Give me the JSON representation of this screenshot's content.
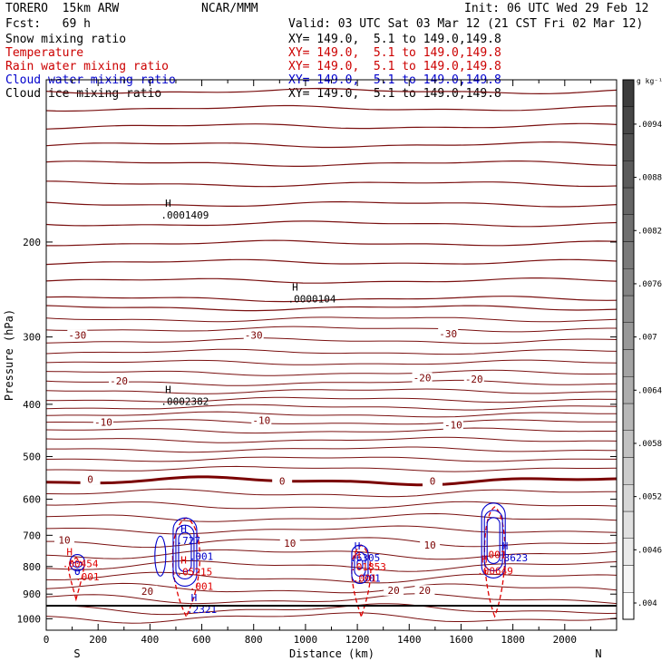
{
  "header": {
    "model": "TORERO  15km ARW",
    "org": "NCAR/MMM",
    "init": "Init: 06 UTC Wed 29 Feb 12",
    "fcst": "Fcst:   69 h",
    "valid": "Valid: 03 UTC Sat 03 Mar 12 (21 CST Fri 02 Mar 12)"
  },
  "fields": [
    {
      "name": "Snow mixing ratio",
      "xy": "XY= 149.0,  5.1 to 149.0,149.8",
      "color": "#000000"
    },
    {
      "name": "Temperature",
      "xy": "XY= 149.0,  5.1 to 149.0,149.8",
      "color": "#cc0000"
    },
    {
      "name": "Rain water mixing ratio",
      "xy": "XY= 149.0,  5.1 to 149.0,149.8",
      "color": "#cc0000"
    },
    {
      "name": "Cloud water mixing ratio",
      "xy": "XY= 149.0,  5.1 to 149.0,149.8",
      "color": "#0000cc"
    },
    {
      "name": "Cloud ice mixing ratio",
      "xy": "XY= 149.0,  5.1 to 149.0,149.8",
      "color": "#000000"
    }
  ],
  "colors": {
    "temperature": "#7a1010",
    "zero_isotherm": "#7a0000",
    "rain": "#e00000",
    "cloud_water": "#0000cc",
    "snow": "#000000"
  },
  "chart_data": {
    "type": "line",
    "title": "",
    "xlabel": "Distance (km)",
    "ylabel": "Pressure (hPa)",
    "xlim": [
      0,
      2200
    ],
    "ylim": [
      1050,
      100
    ],
    "xticks": [
      0,
      200,
      400,
      600,
      800,
      1000,
      1200,
      1400,
      1600,
      1800,
      2000
    ],
    "yticks": [
      200,
      300,
      400,
      500,
      600,
      700,
      800,
      900,
      1000
    ],
    "y_scale": "log",
    "x_end_labels": {
      "left": "S",
      "right": "N"
    },
    "colorbar": {
      "unit": "g kg⁻¹",
      "tick_labels": [
        ".004",
        ".0046",
        ".0052",
        ".0058",
        ".0064",
        ".007",
        ".0076",
        ".0082",
        ".0088",
        ".0094"
      ],
      "levels": [
        0.004,
        0.0046,
        0.0052,
        0.0058,
        0.0064,
        0.007,
        0.0076,
        0.0082,
        0.0088,
        0.0094
      ]
    },
    "isotherms": [
      {
        "t": -60,
        "p": 105
      },
      {
        "t": -58,
        "p": 113
      },
      {
        "t": -56,
        "p": 122
      },
      {
        "t": -54,
        "p": 132
      },
      {
        "t": -52,
        "p": 143
      },
      {
        "t": -50,
        "p": 156
      },
      {
        "t": -48,
        "p": 170
      },
      {
        "t": -46,
        "p": 185
      },
      {
        "t": -44,
        "p": 201
      },
      {
        "t": -42,
        "p": 218
      },
      {
        "t": -40,
        "p": 236
      },
      {
        "t": -38,
        "p": 255
      },
      {
        "t": -36,
        "p": 265
      },
      {
        "t": -34,
        "p": 278
      },
      {
        "t": -32,
        "p": 290
      },
      {
        "t": -30,
        "p": 305
      },
      {
        "t": -28,
        "p": 320
      },
      {
        "t": -26,
        "p": 335
      },
      {
        "t": -24,
        "p": 350
      },
      {
        "t": -22,
        "p": 365
      },
      {
        "t": -20,
        "p": 378
      },
      {
        "t": -18,
        "p": 392
      },
      {
        "t": -16,
        "p": 405
      },
      {
        "t": -14,
        "p": 418
      },
      {
        "t": -12,
        "p": 432
      },
      {
        "t": -10,
        "p": 448
      },
      {
        "t": -8,
        "p": 466
      },
      {
        "t": -6,
        "p": 485
      },
      {
        "t": -4,
        "p": 505
      },
      {
        "t": -2,
        "p": 527
      },
      {
        "t": 0,
        "p": 555
      },
      {
        "t": 2,
        "p": 585
      },
      {
        "t": 4,
        "p": 617
      },
      {
        "t": 6,
        "p": 650
      },
      {
        "t": 8,
        "p": 684
      },
      {
        "t": 10,
        "p": 720
      },
      {
        "t": 12,
        "p": 758
      },
      {
        "t": 14,
        "p": 798
      },
      {
        "t": 16,
        "p": 840
      },
      {
        "t": 18,
        "p": 880
      },
      {
        "t": 20,
        "p": 920
      },
      {
        "t": 22,
        "p": 960
      },
      {
        "t": 24,
        "p": 995
      }
    ],
    "isotherm_labels": [
      {
        "text": "-30",
        "x": 120,
        "p": 300
      },
      {
        "text": "-30",
        "x": 800,
        "p": 300
      },
      {
        "text": "-30",
        "x": 1550,
        "p": 298
      },
      {
        "text": "-20",
        "x": 280,
        "p": 365
      },
      {
        "text": "-20",
        "x": 1450,
        "p": 360
      },
      {
        "text": "-20",
        "x": 1650,
        "p": 362
      },
      {
        "text": "-10",
        "x": 220,
        "p": 435
      },
      {
        "text": "-10",
        "x": 830,
        "p": 432
      },
      {
        "text": "-10",
        "x": 1570,
        "p": 440
      },
      {
        "text": "0",
        "x": 170,
        "p": 555
      },
      {
        "text": "0",
        "x": 910,
        "p": 560
      },
      {
        "text": "0",
        "x": 1490,
        "p": 560
      },
      {
        "text": "10",
        "x": 70,
        "p": 720
      },
      {
        "text": "10",
        "x": 940,
        "p": 730
      },
      {
        "text": "10",
        "x": 1480,
        "p": 735
      },
      {
        "text": "20",
        "x": 390,
        "p": 895
      },
      {
        "text": "20",
        "x": 1340,
        "p": 892
      },
      {
        "text": "20",
        "x": 1460,
        "p": 893
      }
    ],
    "highs": [
      {
        "series": "snow",
        "x": 470,
        "p": 178,
        "label": ".0001409"
      },
      {
        "series": "snow",
        "x": 960,
        "p": 255,
        "label": ".0000104"
      },
      {
        "series": "snow",
        "x": 470,
        "p": 395,
        "label": ".0002382"
      },
      {
        "series": "cloud_water",
        "x": 530,
        "p": 715,
        "label": ".727"
      },
      {
        "series": "cloud_water",
        "x": 1200,
        "p": 770,
        "label": ".6305"
      },
      {
        "series": "cloud_water",
        "x": 1770,
        "p": 770,
        "label": ".3623"
      },
      {
        "series": "cloud_water",
        "x": 570,
        "p": 960,
        "label": ".2321"
      },
      {
        "series": "rain",
        "x": 90,
        "p": 790,
        "label": ".00454"
      },
      {
        "series": "rain",
        "x": 530,
        "p": 818,
        "label": ".05215"
      },
      {
        "series": "rain",
        "x": 1200,
        "p": 800,
        "label": ".01853"
      },
      {
        "series": "rain",
        "x": 1690,
        "p": 815,
        "label": ".00649"
      }
    ],
    "contour_labels": [
      {
        "series": "cloud_water",
        "x": 580,
        "p": 765,
        "text": ".001"
      },
      {
        "series": "rain",
        "x": 580,
        "p": 870,
        "text": ".001"
      },
      {
        "series": "rain",
        "x": 140,
        "p": 835,
        "text": ".001"
      },
      {
        "series": "cloud_water",
        "x": 1225,
        "p": 840,
        "text": ".001"
      },
      {
        "series": "rain",
        "x": 1210,
        "p": 840,
        "text": ".001"
      },
      {
        "series": "rain",
        "x": 1710,
        "p": 760,
        "text": ".001"
      }
    ]
  }
}
